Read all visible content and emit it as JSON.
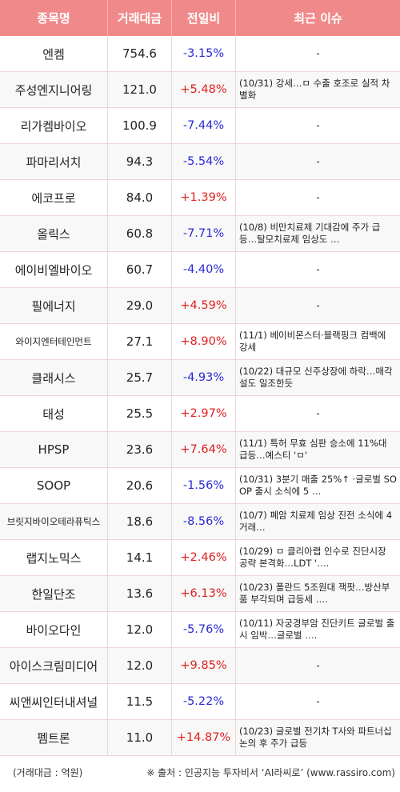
{
  "colors": {
    "header_bg": "#f08a8a",
    "up": "#e02020",
    "down": "#2a2ad6",
    "grid": "#f2d5d5"
  },
  "headers": {
    "name": "종목명",
    "volume": "거래대금",
    "change": "전일비",
    "issue": "최근 이슈"
  },
  "rows": [
    {
      "name": "엔켐",
      "volume": "754.6",
      "change": "-3.15%",
      "dir": "down",
      "issue": "-"
    },
    {
      "name": "주성엔지니어링",
      "volume": "121.0",
      "change": "+5.48%",
      "dir": "up",
      "issue": "(10/31) 강세…ㅁ 수출 호조로 실적 차별화"
    },
    {
      "name": "리가켐바이오",
      "volume": "100.9",
      "change": "-7.44%",
      "dir": "down",
      "issue": "-"
    },
    {
      "name": "파마리서치",
      "volume": "94.3",
      "change": "-5.54%",
      "dir": "down",
      "issue": "-"
    },
    {
      "name": "에코프로",
      "volume": "84.0",
      "change": "+1.39%",
      "dir": "up",
      "issue": "-"
    },
    {
      "name": "올릭스",
      "volume": "60.8",
      "change": "-7.71%",
      "dir": "down",
      "issue": "(10/8) 비만치료제 기대감에 주가 급등…탈모치료제 임상도 …"
    },
    {
      "name": "에이비엘바이오",
      "volume": "60.7",
      "change": "-4.40%",
      "dir": "down",
      "issue": "-"
    },
    {
      "name": "필에너지",
      "volume": "29.0",
      "change": "+4.59%",
      "dir": "up",
      "issue": "-"
    },
    {
      "name": "와이지엔터테인먼트",
      "volume": "27.1",
      "change": "+8.90%",
      "dir": "up",
      "issue": "(11/1) 베이비몬스터·블랙핑크 컴백에 강세"
    },
    {
      "name": "클래시스",
      "volume": "25.7",
      "change": "-4.93%",
      "dir": "down",
      "issue": "(10/22) 대규모 신주상장에 하락…매각설도 일조한듯"
    },
    {
      "name": "태성",
      "volume": "25.5",
      "change": "+2.97%",
      "dir": "up",
      "issue": "-"
    },
    {
      "name": "HPSP",
      "volume": "23.6",
      "change": "+7.64%",
      "dir": "up",
      "issue": "(11/1) 특허 무효 심판 승소에 11%대 급등…예스티 'ㅁ'"
    },
    {
      "name": "SOOP",
      "volume": "20.6",
      "change": "-1.56%",
      "dir": "down",
      "issue": "(10/31) 3분기 매출 25%↑ ·글로벌 SOOP 출시 소식에 5 …"
    },
    {
      "name": "브릿지바이오테라퓨틱스",
      "volume": "18.6",
      "change": "-8.56%",
      "dir": "down",
      "issue": "(10/7) 폐암 치료제 임상 진전 소식에 4거래…"
    },
    {
      "name": "랩지노믹스",
      "volume": "14.1",
      "change": "+2.46%",
      "dir": "up",
      "issue": "(10/29) ㅁ 클리아랩 인수로 진단시장 공략 본격화…LDT '…."
    },
    {
      "name": "한일단조",
      "volume": "13.6",
      "change": "+6.13%",
      "dir": "up",
      "issue": "(10/23) 폴란드 5조원대 잭팟…방산부품 부각되며 급등세 …."
    },
    {
      "name": "바이오다인",
      "volume": "12.0",
      "change": "-5.76%",
      "dir": "down",
      "issue": "(10/11) 자궁경부암 진단키트 글로벌 출시 임박…글로벌 …."
    },
    {
      "name": "아이스크림미디어",
      "volume": "12.0",
      "change": "+9.85%",
      "dir": "up",
      "issue": "-"
    },
    {
      "name": "씨앤씨인터내셔널",
      "volume": "11.5",
      "change": "-5.22%",
      "dir": "down",
      "issue": "-"
    },
    {
      "name": "펨트론",
      "volume": "11.0",
      "change": "+14.87%",
      "dir": "up",
      "issue": "(10/23) 글로벌 전기차 T사와 파트너십 논의 후 주가 급등"
    }
  ],
  "footer": {
    "unit_note": "(거래대금 : 억원)",
    "source_note": "※ 출처 : 인공지능 투자비서 ‘AI라씨로’ (www.rassiro.com)"
  }
}
